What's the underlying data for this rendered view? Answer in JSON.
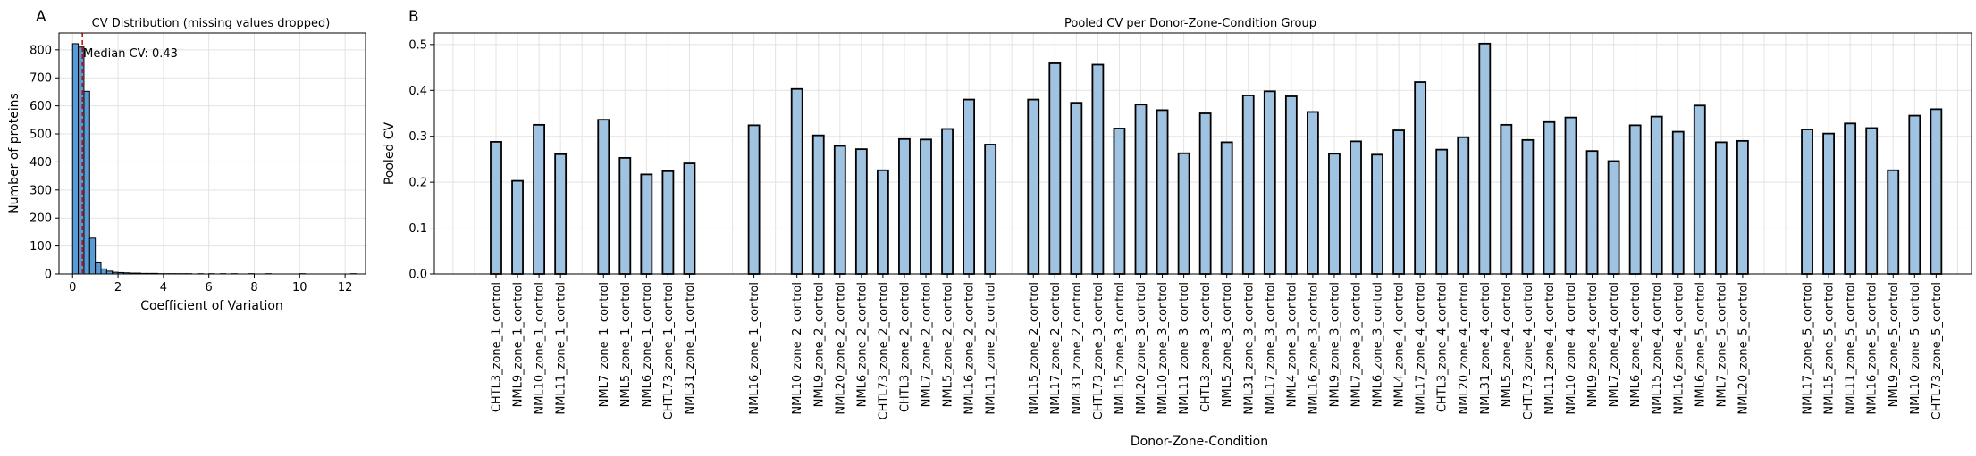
{
  "panels": {
    "a_label": "A",
    "b_label": "B"
  },
  "chart_data": [
    {
      "type": "bar",
      "title": "CV Distribution (missing values dropped)",
      "xlabel": "Coefficient of Variation",
      "ylabel": "Number of proteins",
      "xlim": [
        -0.6,
        12.9
      ],
      "ylim": [
        0,
        860
      ],
      "xticks": [
        0,
        2,
        4,
        6,
        8,
        10,
        12
      ],
      "yticks": [
        0,
        100,
        200,
        300,
        400,
        500,
        600,
        700,
        800
      ],
      "grid": true,
      "bin_width": 0.25,
      "bins": [
        {
          "start": 0.0,
          "count": 822
        },
        {
          "start": 0.25,
          "count": 810
        },
        {
          "start": 0.5,
          "count": 652
        },
        {
          "start": 0.75,
          "count": 128
        },
        {
          "start": 1.0,
          "count": 40
        },
        {
          "start": 1.25,
          "count": 18
        },
        {
          "start": 1.5,
          "count": 10
        },
        {
          "start": 1.75,
          "count": 6
        },
        {
          "start": 2.0,
          "count": 5
        },
        {
          "start": 2.25,
          "count": 4
        },
        {
          "start": 2.5,
          "count": 3
        },
        {
          "start": 2.75,
          "count": 3
        },
        {
          "start": 3.0,
          "count": 2
        },
        {
          "start": 3.25,
          "count": 2
        },
        {
          "start": 3.5,
          "count": 2
        },
        {
          "start": 3.75,
          "count": 1
        },
        {
          "start": 4.0,
          "count": 1
        },
        {
          "start": 4.25,
          "count": 1
        },
        {
          "start": 4.5,
          "count": 1
        },
        {
          "start": 4.75,
          "count": 1
        },
        {
          "start": 5.0,
          "count": 1
        },
        {
          "start": 5.25,
          "count": 0
        },
        {
          "start": 5.5,
          "count": 1
        },
        {
          "start": 5.75,
          "count": 0
        },
        {
          "start": 6.0,
          "count": 1
        },
        {
          "start": 6.25,
          "count": 0
        },
        {
          "start": 6.5,
          "count": 1
        },
        {
          "start": 6.75,
          "count": 0
        },
        {
          "start": 7.0,
          "count": 1
        },
        {
          "start": 7.25,
          "count": 0
        },
        {
          "start": 7.5,
          "count": 0
        },
        {
          "start": 7.75,
          "count": 1
        },
        {
          "start": 8.0,
          "count": 0
        },
        {
          "start": 8.25,
          "count": 0
        },
        {
          "start": 8.5,
          "count": 1
        },
        {
          "start": 8.75,
          "count": 0
        },
        {
          "start": 9.0,
          "count": 0
        },
        {
          "start": 9.25,
          "count": 0
        },
        {
          "start": 9.5,
          "count": 0
        },
        {
          "start": 9.75,
          "count": 0
        },
        {
          "start": 10.0,
          "count": 1
        },
        {
          "start": 10.25,
          "count": 0
        },
        {
          "start": 10.5,
          "count": 0
        },
        {
          "start": 10.75,
          "count": 0
        },
        {
          "start": 11.0,
          "count": 0
        },
        {
          "start": 11.25,
          "count": 0
        },
        {
          "start": 11.5,
          "count": 0
        },
        {
          "start": 11.75,
          "count": 0
        },
        {
          "start": 12.0,
          "count": 0
        },
        {
          "start": 12.25,
          "count": 1
        }
      ],
      "median": 0.43,
      "annotation": "Median CV: 0.43",
      "colors": {
        "bar": "#5b9bd5",
        "edge": "#000000",
        "median_line": "#cc0000"
      }
    },
    {
      "type": "bar",
      "title": "Pooled CV per Donor-Zone-Condition Group",
      "xlabel": "Donor-Zone-Condition",
      "ylabel": "Pooled CV",
      "ylim": [
        0,
        0.525
      ],
      "yticks": [
        0.0,
        0.1,
        0.2,
        0.3,
        0.4,
        0.5
      ],
      "grid": true,
      "categories": [
        "",
        "",
        "CHTL3_zone_1_control",
        "NML9_zone_1_control",
        "NML10_zone_1_control",
        "NML11_zone_1_control",
        "",
        "NML7_zone_1_control",
        "NML5_zone_1_control",
        "NML6_zone_1_control",
        "CHTL73_zone_1_control",
        "NML31_zone_1_control",
        "",
        "",
        "NML16_zone_1_control",
        "",
        "NML10_zone_2_control",
        "NML9_zone_2_control",
        "NML20_zone_2_control",
        "NML6_zone_2_control",
        "CHTL73_zone_2_control",
        "CHTL3_zone_2_control",
        "NML7_zone_2_control",
        "NML5_zone_2_control",
        "NML16_zone_2_control",
        "NML11_zone_2_control",
        "",
        "NML15_zone_2_control",
        "NML17_zone_2_control",
        "NML31_zone_2_control",
        "CHTL73_zone_3_control",
        "NML15_zone_3_control",
        "NML20_zone_3_control",
        "NML10_zone_3_control",
        "NML11_zone_3_control",
        "CHTL3_zone_3_control",
        "NML5_zone_3_control",
        "NML31_zone_3_control",
        "NML17_zone_3_control",
        "NML4_zone_3_control",
        "NML16_zone_3_control",
        "NML9_zone_3_control",
        "NML7_zone_3_control",
        "NML6_zone_3_control",
        "NML4_zone_4_control",
        "NML17_zone_4_control",
        "CHTL3_zone_4_control",
        "NML20_zone_4_control",
        "NML31_zone_4_control",
        "NML5_zone_4_control",
        "CHTL73_zone_4_control",
        "NML11_zone_4_control",
        "NML10_zone_4_control",
        "NML9_zone_4_control",
        "NML7_zone_4_control",
        "NML6_zone_4_control",
        "NML15_zone_4_control",
        "NML16_zone_4_control",
        "NML6_zone_5_control",
        "NML7_zone_5_control",
        "NML20_zone_5_control",
        "",
        "",
        "NML17_zone_5_control",
        "NML15_zone_5_control",
        "NML11_zone_5_control",
        "NML16_zone_5_control",
        "NML9_zone_5_control",
        "NML10_zone_5_control",
        "CHTL73_zone_5_control",
        ""
      ],
      "values": [
        null,
        null,
        0.288,
        0.203,
        0.325,
        0.261,
        null,
        0.336,
        0.253,
        0.217,
        0.224,
        0.241,
        null,
        null,
        0.324,
        null,
        0.403,
        0.302,
        0.279,
        0.272,
        0.226,
        0.294,
        0.293,
        0.316,
        0.38,
        0.282,
        null,
        0.38,
        0.459,
        0.373,
        0.456,
        0.317,
        0.369,
        0.357,
        0.263,
        0.35,
        0.287,
        0.389,
        0.398,
        0.387,
        0.353,
        0.262,
        0.289,
        0.26,
        0.313,
        0.418,
        0.271,
        0.298,
        0.502,
        0.325,
        0.292,
        0.331,
        0.341,
        0.268,
        0.246,
        0.324,
        0.343,
        0.31,
        0.367,
        0.287,
        0.29,
        null,
        null,
        0.315,
        0.306,
        0.328,
        0.318,
        0.226,
        0.345,
        0.359,
        null
      ],
      "colors": {
        "bar": "#9fc3e0",
        "edge": "#000000"
      }
    }
  ]
}
